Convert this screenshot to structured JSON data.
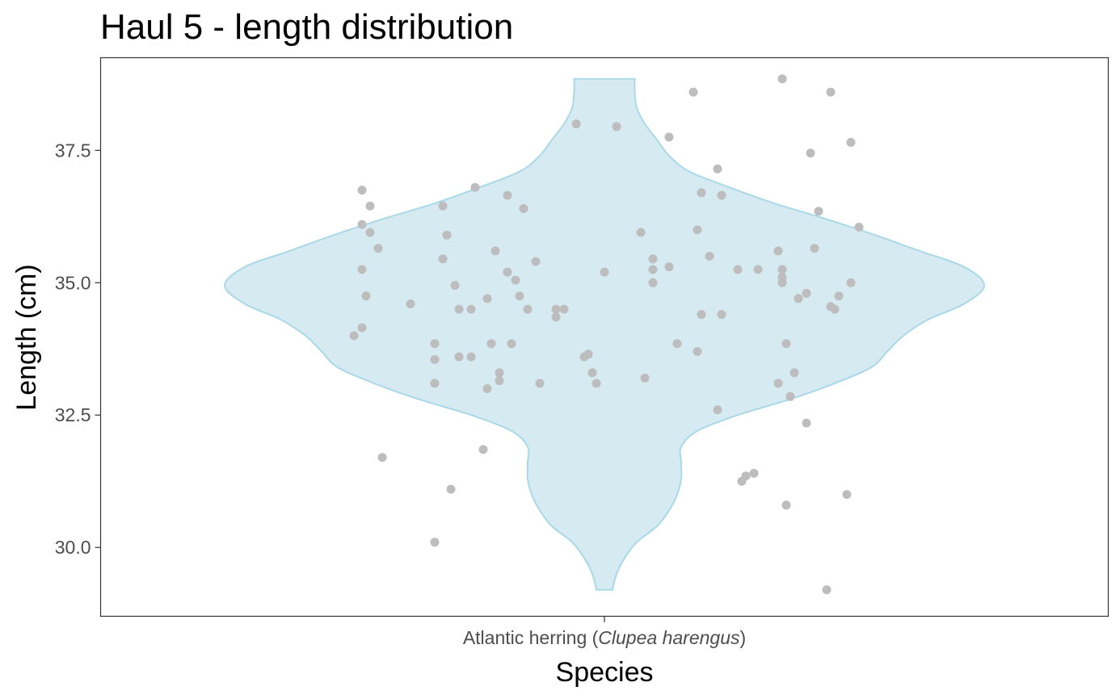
{
  "chart_data": {
    "type": "scatter",
    "title": "Haul 5 - length distribution",
    "xlabel": "Species",
    "ylabel": "Length (cm)",
    "categories": [
      "Atlantic herring (Clupea harengus)"
    ],
    "category_label": {
      "common": "Atlantic herring (",
      "scientific": "Clupea harengus",
      "close": ")"
    },
    "yticks": [
      "30.0",
      "32.5",
      "35.0",
      "37.5"
    ],
    "ylim": [
      28.7,
      39.25
    ],
    "grid": false,
    "legend": "none",
    "colors": {
      "violin_fill": "#d6eaf2",
      "violin_stroke": "#a9d8e6",
      "points": "#bdbdbd",
      "panel_border": "#333333"
    },
    "violin": {
      "min": 29.2,
      "max": 38.85,
      "profile": [
        [
          29.2,
          0.02
        ],
        [
          29.5,
          0.03
        ],
        [
          29.8,
          0.05
        ],
        [
          30.1,
          0.08
        ],
        [
          30.4,
          0.13
        ],
        [
          30.7,
          0.16
        ],
        [
          31.0,
          0.18
        ],
        [
          31.3,
          0.19
        ],
        [
          31.6,
          0.19
        ],
        [
          31.9,
          0.19
        ],
        [
          32.2,
          0.23
        ],
        [
          32.5,
          0.33
        ],
        [
          32.8,
          0.46
        ],
        [
          33.1,
          0.57
        ],
        [
          33.4,
          0.66
        ],
        [
          33.7,
          0.7
        ],
        [
          34.0,
          0.74
        ],
        [
          34.3,
          0.8
        ],
        [
          34.6,
          0.89
        ],
        [
          34.95,
          0.94
        ],
        [
          35.3,
          0.89
        ],
        [
          35.6,
          0.78
        ],
        [
          35.9,
          0.67
        ],
        [
          36.2,
          0.55
        ],
        [
          36.5,
          0.42
        ],
        [
          36.8,
          0.31
        ],
        [
          37.1,
          0.21
        ],
        [
          37.4,
          0.16
        ],
        [
          37.7,
          0.13
        ],
        [
          38.0,
          0.1
        ],
        [
          38.3,
          0.08
        ],
        [
          38.6,
          0.075
        ],
        [
          38.85,
          0.075
        ]
      ]
    },
    "points": [
      {
        "x": -0.62,
        "y": 34.0
      },
      {
        "x": -0.6,
        "y": 36.1
      },
      {
        "x": -0.6,
        "y": 34.15
      },
      {
        "x": -0.6,
        "y": 36.75
      },
      {
        "x": -0.6,
        "y": 35.25
      },
      {
        "x": -0.59,
        "y": 34.75
      },
      {
        "x": -0.58,
        "y": 35.95
      },
      {
        "x": -0.58,
        "y": 36.45
      },
      {
        "x": -0.56,
        "y": 35.65
      },
      {
        "x": -0.55,
        "y": 31.7
      },
      {
        "x": -0.48,
        "y": 34.6
      },
      {
        "x": -0.42,
        "y": 33.85
      },
      {
        "x": -0.42,
        "y": 33.55
      },
      {
        "x": -0.42,
        "y": 33.1
      },
      {
        "x": -0.42,
        "y": 30.1
      },
      {
        "x": -0.4,
        "y": 35.45
      },
      {
        "x": -0.4,
        "y": 36.45
      },
      {
        "x": -0.39,
        "y": 35.9
      },
      {
        "x": -0.38,
        "y": 31.1
      },
      {
        "x": -0.37,
        "y": 34.95
      },
      {
        "x": -0.36,
        "y": 33.6
      },
      {
        "x": -0.36,
        "y": 34.5
      },
      {
        "x": -0.33,
        "y": 34.5
      },
      {
        "x": -0.33,
        "y": 33.6
      },
      {
        "x": -0.32,
        "y": 36.8
      },
      {
        "x": -0.3,
        "y": 31.85
      },
      {
        "x": -0.29,
        "y": 33.0
      },
      {
        "x": -0.29,
        "y": 34.7
      },
      {
        "x": -0.28,
        "y": 33.85
      },
      {
        "x": -0.27,
        "y": 35.6
      },
      {
        "x": -0.26,
        "y": 33.3
      },
      {
        "x": -0.26,
        "y": 33.15
      },
      {
        "x": -0.24,
        "y": 35.2
      },
      {
        "x": -0.24,
        "y": 36.65
      },
      {
        "x": -0.23,
        "y": 33.85
      },
      {
        "x": -0.22,
        "y": 35.05
      },
      {
        "x": -0.21,
        "y": 34.75
      },
      {
        "x": -0.2,
        "y": 36.4
      },
      {
        "x": -0.19,
        "y": 34.5
      },
      {
        "x": -0.17,
        "y": 35.4
      },
      {
        "x": -0.16,
        "y": 33.1
      },
      {
        "x": -0.12,
        "y": 34.5
      },
      {
        "x": -0.12,
        "y": 34.35
      },
      {
        "x": -0.1,
        "y": 34.5
      },
      {
        "x": -0.07,
        "y": 38.0
      },
      {
        "x": -0.05,
        "y": 33.6
      },
      {
        "x": -0.04,
        "y": 33.65
      },
      {
        "x": -0.03,
        "y": 33.3
      },
      {
        "x": -0.02,
        "y": 33.1
      },
      {
        "x": 0.0,
        "y": 35.2
      },
      {
        "x": 0.03,
        "y": 37.95
      },
      {
        "x": 0.09,
        "y": 35.95
      },
      {
        "x": 0.1,
        "y": 33.2
      },
      {
        "x": 0.12,
        "y": 35.45
      },
      {
        "x": 0.12,
        "y": 35.25
      },
      {
        "x": 0.12,
        "y": 35.0
      },
      {
        "x": 0.16,
        "y": 37.75
      },
      {
        "x": 0.16,
        "y": 35.3
      },
      {
        "x": 0.18,
        "y": 33.85
      },
      {
        "x": 0.22,
        "y": 38.6
      },
      {
        "x": 0.23,
        "y": 36.0
      },
      {
        "x": 0.23,
        "y": 33.7
      },
      {
        "x": 0.24,
        "y": 34.4
      },
      {
        "x": 0.24,
        "y": 36.7
      },
      {
        "x": 0.26,
        "y": 35.5
      },
      {
        "x": 0.28,
        "y": 32.6
      },
      {
        "x": 0.28,
        "y": 37.15
      },
      {
        "x": 0.29,
        "y": 34.4
      },
      {
        "x": 0.29,
        "y": 36.65
      },
      {
        "x": 0.33,
        "y": 35.25
      },
      {
        "x": 0.34,
        "y": 31.25
      },
      {
        "x": 0.35,
        "y": 31.35
      },
      {
        "x": 0.37,
        "y": 31.4
      },
      {
        "x": 0.38,
        "y": 35.25
      },
      {
        "x": 0.43,
        "y": 35.6
      },
      {
        "x": 0.43,
        "y": 33.1
      },
      {
        "x": 0.44,
        "y": 35.25
      },
      {
        "x": 0.44,
        "y": 35.1
      },
      {
        "x": 0.44,
        "y": 35.0
      },
      {
        "x": 0.44,
        "y": 38.85
      },
      {
        "x": 0.45,
        "y": 33.85
      },
      {
        "x": 0.45,
        "y": 30.8
      },
      {
        "x": 0.46,
        "y": 32.85
      },
      {
        "x": 0.47,
        "y": 33.3
      },
      {
        "x": 0.48,
        "y": 34.7
      },
      {
        "x": 0.5,
        "y": 34.8
      },
      {
        "x": 0.5,
        "y": 32.35
      },
      {
        "x": 0.51,
        "y": 37.45
      },
      {
        "x": 0.52,
        "y": 35.65
      },
      {
        "x": 0.53,
        "y": 36.35
      },
      {
        "x": 0.55,
        "y": 29.2
      },
      {
        "x": 0.56,
        "y": 34.55
      },
      {
        "x": 0.56,
        "y": 38.6
      },
      {
        "x": 0.57,
        "y": 34.5
      },
      {
        "x": 0.58,
        "y": 34.75
      },
      {
        "x": 0.6,
        "y": 31.0
      },
      {
        "x": 0.61,
        "y": 35.0
      },
      {
        "x": 0.61,
        "y": 37.65
      },
      {
        "x": 0.63,
        "y": 36.05
      }
    ]
  }
}
